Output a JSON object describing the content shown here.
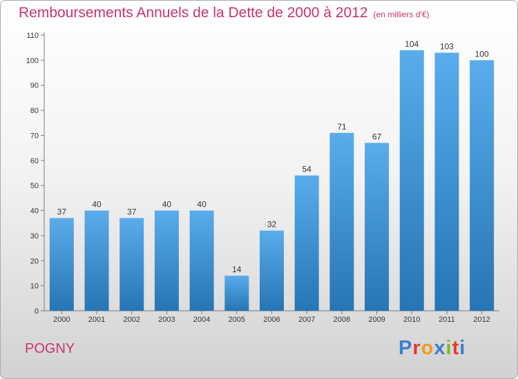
{
  "header": {
    "title": "Remboursements Annuels de la Dette de 2000 à 2012",
    "unit": "(en milliers d'€)"
  },
  "footer": {
    "commune": "POGNY",
    "brand": [
      "P",
      "r",
      "o",
      "x",
      "i",
      "t",
      "i"
    ]
  },
  "chart_data": {
    "type": "bar",
    "title": "Remboursements Annuels de la Dette de 2000 à 2012",
    "subtitle": "(en milliers d'€)",
    "xlabel": "",
    "ylabel": "",
    "categories": [
      "2000",
      "2001",
      "2002",
      "2003",
      "2004",
      "2005",
      "2006",
      "2007",
      "2008",
      "2009",
      "2010",
      "2011",
      "2012"
    ],
    "values": [
      37,
      40,
      37,
      40,
      40,
      14,
      32,
      54,
      71,
      67,
      104,
      103,
      100
    ],
    "ylim": [
      0,
      110
    ],
    "yticks": [
      0,
      10,
      20,
      30,
      40,
      50,
      60,
      70,
      80,
      90,
      100,
      110
    ],
    "grid": false,
    "legend": "none",
    "bar_color_top": "#5aaceb",
    "bar_color_bottom": "#2675b5",
    "axis_color": "#7a7a7a",
    "text_color": "#333333"
  }
}
